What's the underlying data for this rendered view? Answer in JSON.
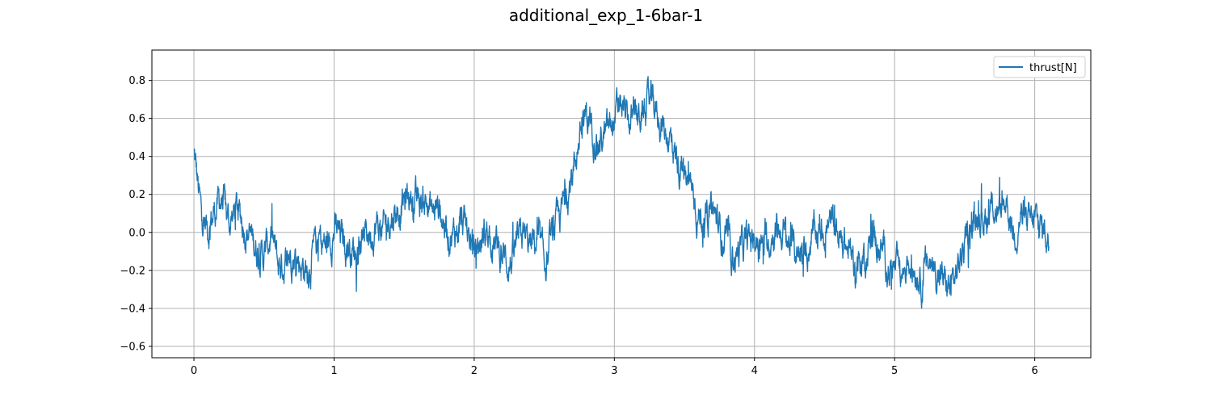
{
  "title": "additional_exp_1-6bar-1",
  "colors": {
    "series": "#1f77b4",
    "grid": "#b0b0b0",
    "axis": "#000000",
    "background": "#ffffff"
  },
  "chart_data": {
    "type": "line",
    "title": "additional_exp_1-6bar-1",
    "xlabel": "",
    "ylabel": "",
    "xlim": [
      -0.3,
      6.4
    ],
    "ylim": [
      -0.66,
      0.96
    ],
    "xticks": [
      0,
      1,
      2,
      3,
      4,
      5,
      6
    ],
    "xtick_labels": [
      "0",
      "1",
      "2",
      "3",
      "4",
      "5",
      "6"
    ],
    "yticks": [
      -0.6,
      -0.4,
      -0.2,
      0.0,
      0.2,
      0.4,
      0.6,
      0.8
    ],
    "ytick_labels": [
      "−0.6",
      "−0.4",
      "−0.2",
      "0.0",
      "0.2",
      "0.4",
      "0.6",
      "0.8"
    ],
    "grid": true,
    "legend": "top-right",
    "series": [
      {
        "name": "thrust[N]",
        "color": "#1f77b4",
        "x": [
          0.0,
          0.05,
          0.1,
          0.15,
          0.2,
          0.25,
          0.3,
          0.35,
          0.4,
          0.45,
          0.5,
          0.55,
          0.6,
          0.65,
          0.7,
          0.75,
          0.8,
          0.85,
          0.9,
          0.95,
          1.0,
          1.05,
          1.1,
          1.15,
          1.2,
          1.25,
          1.3,
          1.35,
          1.4,
          1.45,
          1.5,
          1.55,
          1.6,
          1.65,
          1.7,
          1.75,
          1.8,
          1.85,
          1.9,
          1.95,
          2.0,
          2.05,
          2.1,
          2.15,
          2.2,
          2.25,
          2.3,
          2.35,
          2.4,
          2.45,
          2.5,
          2.55,
          2.6,
          2.65,
          2.7,
          2.75,
          2.8,
          2.85,
          2.9,
          2.95,
          3.0,
          3.05,
          3.1,
          3.15,
          3.2,
          3.25,
          3.3,
          3.35,
          3.4,
          3.45,
          3.5,
          3.55,
          3.6,
          3.65,
          3.7,
          3.75,
          3.8,
          3.85,
          3.9,
          3.95,
          4.0,
          4.05,
          4.1,
          4.15,
          4.2,
          4.25,
          4.3,
          4.35,
          4.4,
          4.45,
          4.5,
          4.55,
          4.6,
          4.65,
          4.7,
          4.75,
          4.8,
          4.85,
          4.9,
          4.95,
          5.0,
          5.05,
          5.1,
          5.15,
          5.2,
          5.25,
          5.3,
          5.35,
          5.4,
          5.45,
          5.5,
          5.55,
          5.6,
          5.65,
          5.7,
          5.75,
          5.8,
          5.85,
          5.9,
          5.95,
          6.0,
          6.05,
          6.1
        ],
        "y": [
          0.42,
          0.1,
          0.02,
          0.12,
          0.18,
          0.05,
          0.12,
          0.06,
          -0.02,
          -0.08,
          -0.12,
          -0.02,
          -0.18,
          -0.16,
          -0.1,
          -0.15,
          -0.2,
          -0.12,
          -0.04,
          -0.08,
          0.02,
          -0.03,
          -0.06,
          -0.1,
          -0.02,
          0.0,
          0.04,
          0.0,
          0.08,
          0.12,
          0.16,
          0.2,
          0.14,
          0.18,
          0.1,
          0.15,
          0.02,
          -0.02,
          0.05,
          0.0,
          -0.1,
          -0.05,
          0.03,
          -0.06,
          -0.12,
          -0.16,
          -0.1,
          -0.02,
          -0.08,
          -0.04,
          -0.18,
          -0.06,
          0.05,
          0.18,
          0.3,
          0.5,
          0.62,
          0.55,
          0.48,
          0.52,
          0.6,
          0.66,
          0.58,
          0.6,
          0.62,
          0.68,
          0.64,
          0.55,
          0.5,
          0.38,
          0.28,
          0.24,
          0.1,
          0.06,
          0.12,
          0.02,
          -0.05,
          -0.12,
          -0.1,
          -0.06,
          -0.02,
          -0.08,
          -0.04,
          0.02,
          0.0,
          -0.06,
          -0.1,
          -0.12,
          -0.05,
          0.0,
          0.02,
          0.04,
          -0.02,
          -0.08,
          -0.14,
          -0.18,
          -0.1,
          -0.02,
          -0.08,
          -0.16,
          -0.2,
          -0.22,
          -0.14,
          -0.18,
          -0.24,
          -0.16,
          -0.2,
          -0.26,
          -0.3,
          -0.2,
          -0.06,
          0.02,
          0.12,
          0.08,
          0.16,
          0.08,
          0.18,
          0.0,
          0.1,
          0.02,
          0.06,
          0.02,
          -0.02
        ]
      }
    ]
  }
}
